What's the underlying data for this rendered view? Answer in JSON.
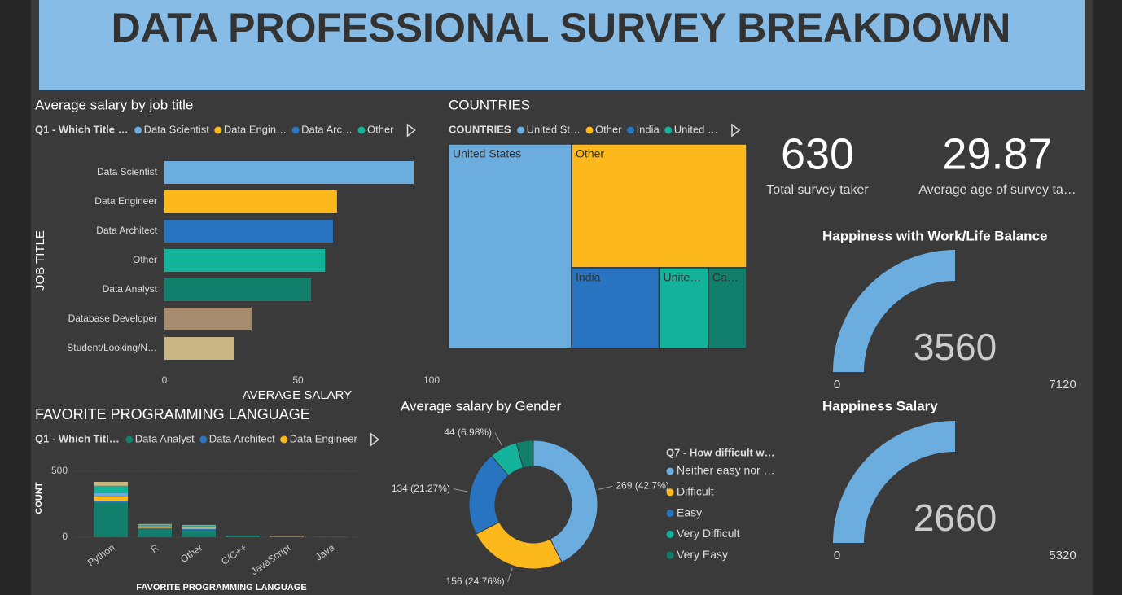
{
  "header": {
    "title": "DATA PROFESSIONAL SURVEY BREAKDOWN"
  },
  "cards": [
    {
      "value": 630,
      "label": "Total survey taker"
    },
    {
      "value": 29.87,
      "label": "Average age of survey ta…"
    }
  ],
  "chart_data": [
    {
      "type": "hbar",
      "title": "Average salary by job title",
      "legend_title": "Q1 - Which Title …",
      "legend": [
        "Data Scientist",
        "Data Engin…",
        "Data Arc…",
        "Other"
      ],
      "categories": [
        "Data Scientist",
        "Data Engineer",
        "Data Architect",
        "Other",
        "Data Analyst",
        "Database Developer",
        "Student/Looking/N…"
      ],
      "values": [
        93.3,
        64.6,
        63.1,
        60.1,
        54.9,
        32.6,
        26.2
      ],
      "colors": [
        "#6cade0",
        "#fdb81c",
        "#2874c0",
        "#12b39a",
        "#117f6c",
        "#a78b6f",
        "#c8b784"
      ],
      "xlim": [
        0,
        100
      ],
      "xticks": [
        0,
        50,
        100
      ],
      "xlabel": "AVERAGE SALARY",
      "ylabel": "JOB TITLE"
    },
    {
      "type": "treemap",
      "title": "COUNTRIES",
      "legend_title": "COUNTRIES",
      "legend": [
        "United St…",
        "Other",
        "India",
        "United …"
      ],
      "categories": [
        "United States",
        "Other",
        "India",
        "Unite…",
        "Ca…"
      ],
      "values": [
        260,
        224,
        73,
        41,
        32
      ],
      "colors": [
        "#6cade0",
        "#fdb81c",
        "#2874c0",
        "#12b39a",
        "#117f6c"
      ]
    },
    {
      "type": "stacked_bar",
      "title": "FAVORITE PROGRAMMING LANGUAGE",
      "legend_title": "Q1 - Which Titl…",
      "categories": [
        "Python",
        "R",
        "Other",
        "C/C++",
        "JavaScript",
        "Java"
      ],
      "series": [
        {
          "name": "Data Analyst",
          "color": "#117f6c",
          "values": [
            260,
            60,
            55,
            8,
            4,
            4
          ]
        },
        {
          "name": "Data Architect",
          "color": "#2874c0",
          "values": [
            15,
            10,
            8,
            0,
            0,
            0
          ]
        },
        {
          "name": "Data Engineer",
          "color": "#fdb81c",
          "values": [
            35,
            5,
            8,
            0,
            0,
            0
          ]
        },
        {
          "color": "#6cade0",
          "values": [
            25,
            10,
            10,
            0,
            0,
            0
          ]
        },
        {
          "color": "#12b39a",
          "values": [
            55,
            10,
            7,
            4,
            0,
            0
          ]
        },
        {
          "color": "#c8b784",
          "values": [
            30,
            5,
            5,
            0,
            6,
            0
          ]
        }
      ],
      "ylim": [
        0,
        520
      ],
      "yticks": [
        0,
        500
      ],
      "xlabel": "FAVORITE PROGRAMMING LANGUAGE",
      "ylabel": "COUNT"
    },
    {
      "type": "donut",
      "title": "Average salary by Gender",
      "legend_title": "Q7 - How difficult w…",
      "categories": [
        "Neither easy nor …",
        "Difficult",
        "Easy",
        "Very Difficult",
        "Very Easy"
      ],
      "values": [
        269,
        156,
        134,
        44,
        27
      ],
      "value_labels": [
        "269 (42.7%)",
        "156 (24.76%)",
        "134 (21.27%)",
        "44 (6.98%)",
        null
      ],
      "colors": [
        "#6cade0",
        "#fdb81c",
        "#2874c0",
        "#12b39a",
        "#117f6c"
      ]
    },
    {
      "type": "gauge",
      "title": "Happiness with Work/Life Balance",
      "value": 3560,
      "ylim": [
        0,
        7120
      ],
      "color": "#6cade0"
    },
    {
      "type": "gauge",
      "title": "Happiness Salary",
      "value": 2660,
      "ylim": [
        0,
        5320
      ],
      "color": "#6cade0"
    }
  ]
}
